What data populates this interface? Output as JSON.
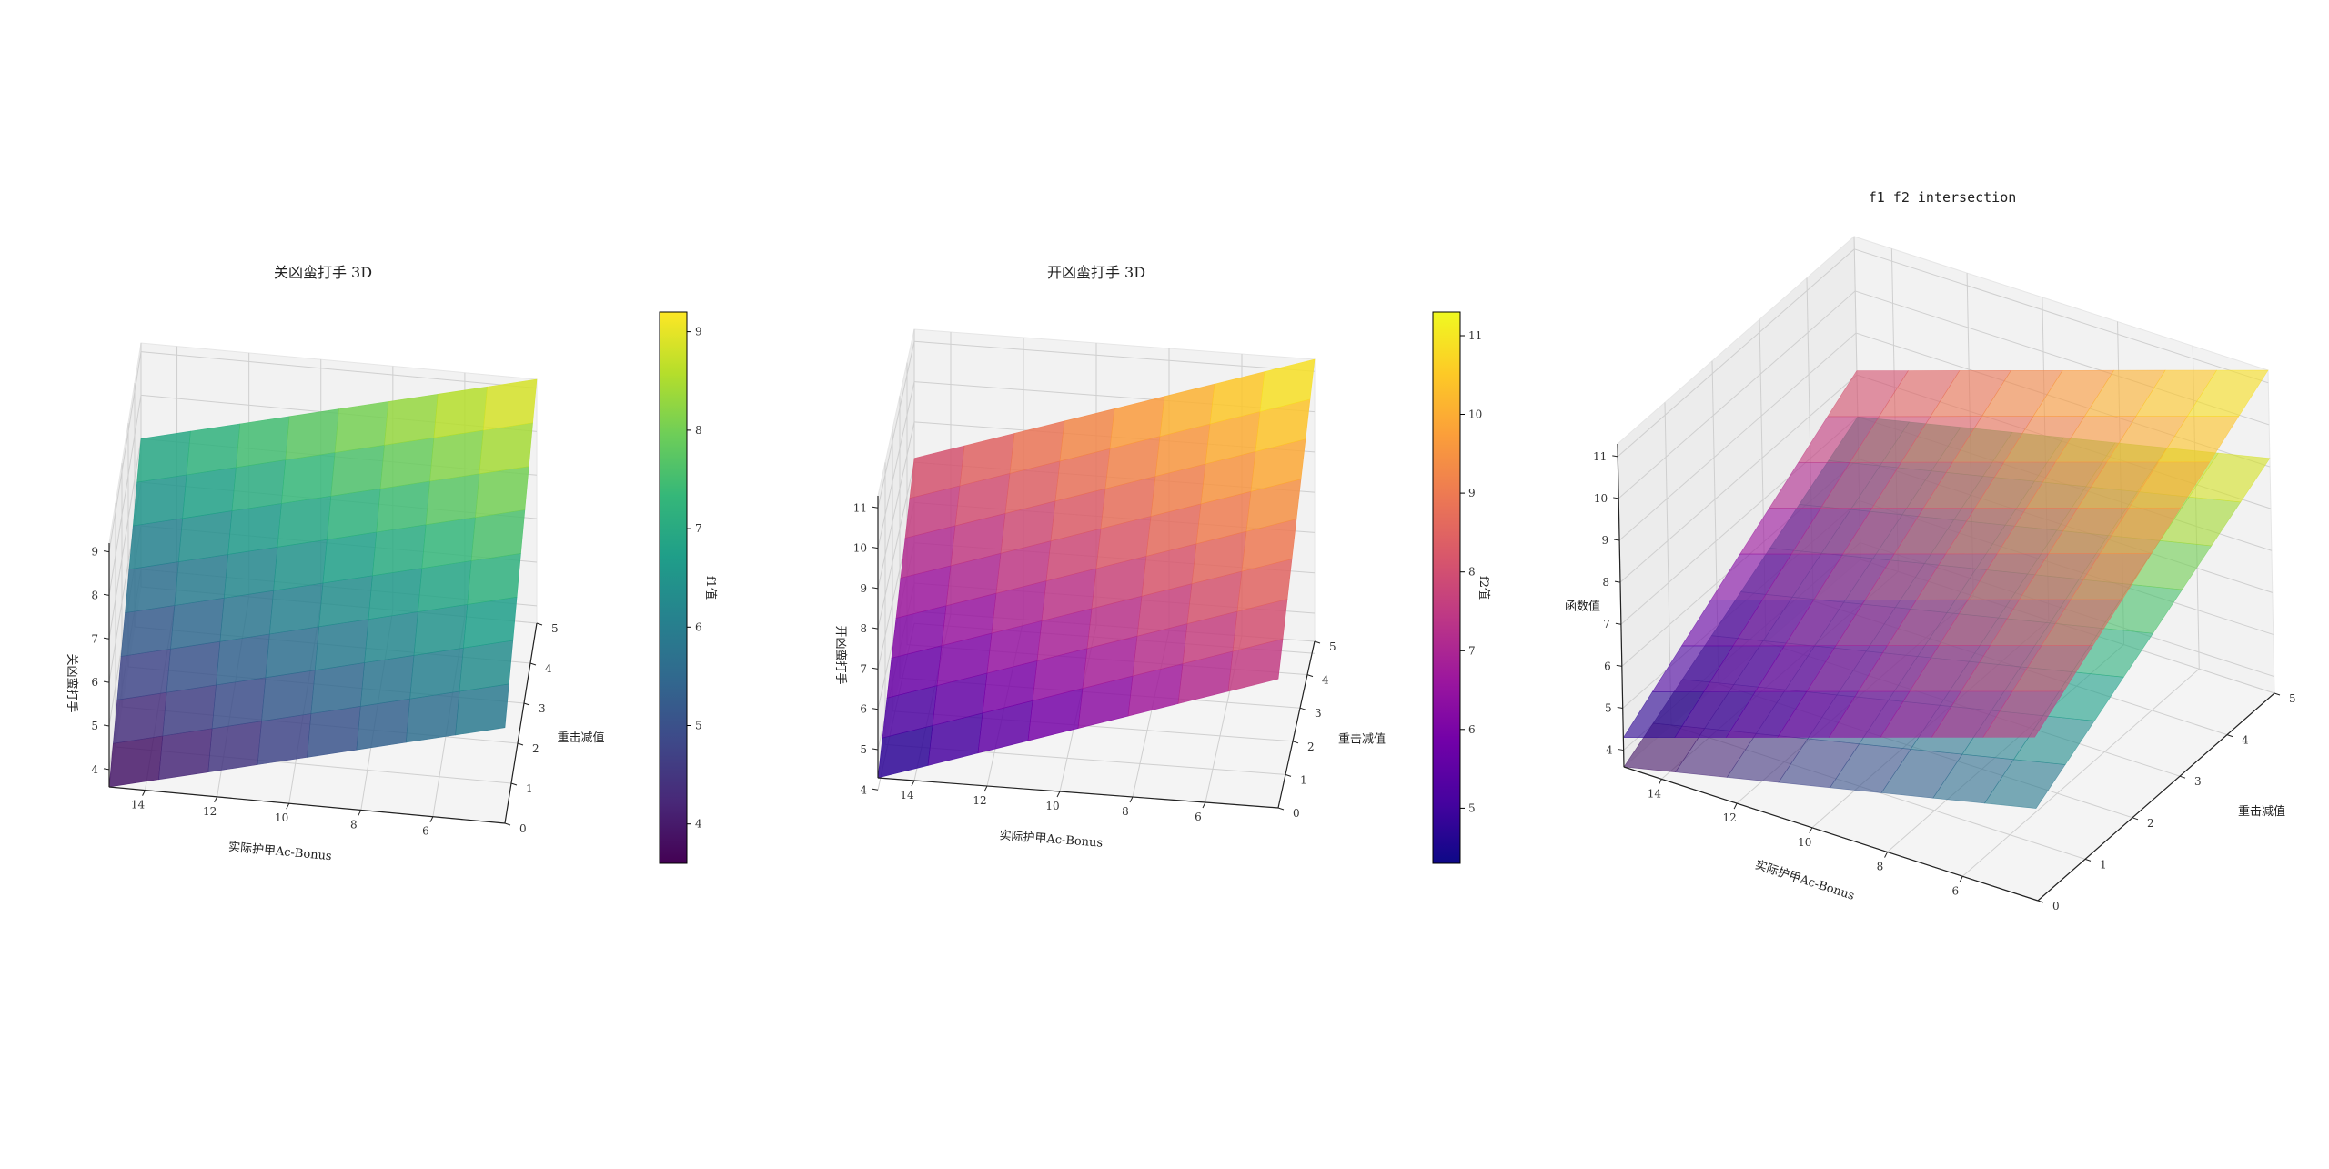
{
  "chart_data": [
    {
      "type": "surface3d",
      "title": "关凶蛮打手 3D",
      "xlabel": "实际护甲Ac-Bonus",
      "ylabel": "重击减值",
      "zlabel": "关凶蛮打手",
      "x_ticks": [
        14,
        12,
        10,
        8,
        6
      ],
      "y_ticks": [
        0,
        1,
        2,
        3,
        4,
        5
      ],
      "z_ticks": [
        4,
        5,
        6,
        7,
        8,
        9
      ],
      "xlim": [
        4,
        15
      ],
      "ylim": [
        0,
        5
      ],
      "zlim": [
        3.6,
        9.2
      ],
      "surface": {
        "z_at_x15_y0": 3.6,
        "z_at_x4_y0": 5.8,
        "z_at_x15_y5": 7.0,
        "z_at_x4_y5": 9.2
      },
      "colormap": "viridis",
      "colorbar": {
        "label": "f1值",
        "ticks": [
          4,
          5,
          6,
          7,
          8,
          9
        ],
        "range": [
          3.6,
          9.2
        ]
      }
    },
    {
      "type": "surface3d",
      "title": "开凶蛮打手 3D",
      "xlabel": "实际护甲Ac-Bonus",
      "ylabel": "重击减值",
      "zlabel": "开凶蛮打手",
      "x_ticks": [
        14,
        12,
        10,
        8,
        6
      ],
      "y_ticks": [
        0,
        1,
        2,
        3,
        4,
        5
      ],
      "z_ticks": [
        4,
        5,
        6,
        7,
        8,
        9,
        10,
        11
      ],
      "xlim": [
        4,
        15
      ],
      "ylim": [
        0,
        5
      ],
      "zlim": [
        4.3,
        11.3
      ],
      "surface": {
        "z_at_x15_y0": 4.3,
        "z_at_x4_y0": 7.5,
        "z_at_x15_y5": 8.1,
        "z_at_x4_y5": 11.3
      },
      "colormap": "plasma",
      "colorbar": {
        "label": "f2值",
        "ticks": [
          5,
          6,
          7,
          8,
          9,
          10,
          11
        ],
        "range": [
          4.3,
          11.3
        ]
      }
    },
    {
      "type": "surface3d",
      "title": "f1 f2 intersection",
      "xlabel": "实际护甲Ac-Bonus",
      "ylabel": "重击减值",
      "zlabel": "函数值",
      "x_ticks": [
        14,
        12,
        10,
        8,
        6
      ],
      "y_ticks": [
        0,
        1,
        2,
        3,
        4,
        5
      ],
      "z_ticks": [
        4,
        5,
        6,
        7,
        8,
        9,
        10,
        11
      ],
      "xlim": [
        4,
        15
      ],
      "ylim": [
        0,
        5
      ],
      "zlim": [
        3.6,
        11.3
      ],
      "series": [
        {
          "colormap": "viridis",
          "surface": {
            "z_at_x15_y0": 3.6,
            "z_at_x4_y0": 5.8,
            "z_at_x15_y5": 7.0,
            "z_at_x4_y5": 9.2
          }
        },
        {
          "colormap": "plasma",
          "surface": {
            "z_at_x15_y0": 4.3,
            "z_at_x4_y0": 7.5,
            "z_at_x15_y5": 8.1,
            "z_at_x4_y5": 11.3
          }
        }
      ]
    }
  ]
}
